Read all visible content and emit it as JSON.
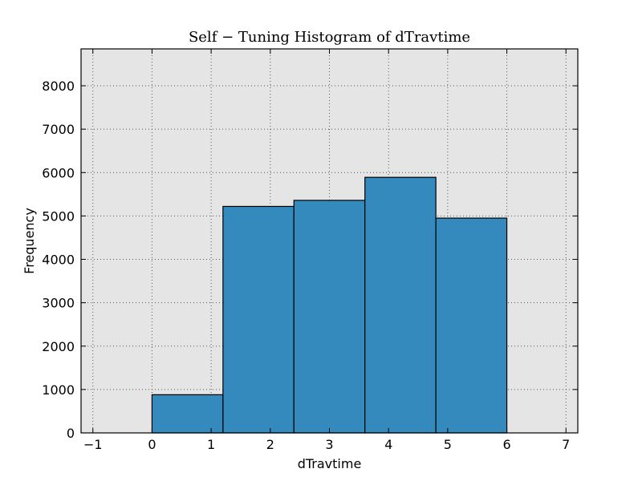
{
  "chart_data": {
    "type": "bar",
    "title": "Self − Tuning Histogram of dTravtime",
    "xlabel": "dTravtime",
    "ylabel": "Frequency",
    "xlim": [
      -1.2,
      7.2
    ],
    "ylim": [
      0,
      8850
    ],
    "xticks": [
      -1,
      0,
      1,
      2,
      3,
      4,
      5,
      6,
      7
    ],
    "xtick_labels": [
      "−1",
      "0",
      "1",
      "2",
      "3",
      "4",
      "5",
      "6",
      "7"
    ],
    "yticks": [
      0,
      1000,
      2000,
      3000,
      4000,
      5000,
      6000,
      7000,
      8000
    ],
    "ytick_labels": [
      "0",
      "1000",
      "2000",
      "3000",
      "4000",
      "5000",
      "6000",
      "7000",
      "8000"
    ],
    "grid": true,
    "bins": [
      {
        "x0": 0.0,
        "x1": 1.2,
        "value": 880
      },
      {
        "x0": 1.2,
        "x1": 2.4,
        "value": 5220
      },
      {
        "x0": 2.4,
        "x1": 3.6,
        "value": 5360
      },
      {
        "x0": 3.6,
        "x1": 4.8,
        "value": 5890
      },
      {
        "x0": 4.8,
        "x1": 6.0,
        "value": 4950
      }
    ],
    "colors": {
      "bar_fill": "#348ABD",
      "bar_edge": "#000000",
      "plot_bg": "#E5E5E5",
      "grid": "#555555"
    }
  }
}
